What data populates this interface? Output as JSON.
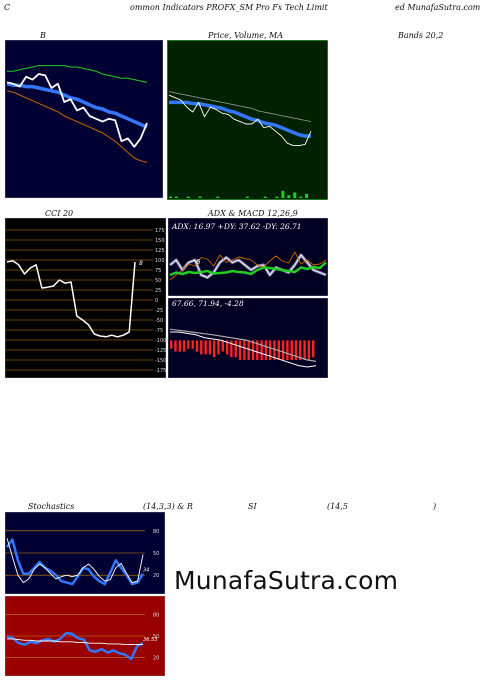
{
  "header": {
    "left": "C",
    "center": "ommon  Indicators PROFX_SM Pro  Fx Tech Limit",
    "right": "ed MunafaSutra.com"
  },
  "titles": {
    "bands_b": "B",
    "price_ma": "Price,  Volume,  MA",
    "bands": "Bands 20,2",
    "cci": "CCI 20",
    "adx_macd": "ADX   & MACD 12,26,9",
    "stoch_a": "Stochastics",
    "stoch_b": "(14,3,3) & R",
    "stoch_c": "SI",
    "stoch_d": "(14,5",
    "stoch_e": ")"
  },
  "adx_text": "ADX: 16.97  +DY: 37.62  -DY: 26.71",
  "macd_text": "67.66,   71.94,   -4.28",
  "watermark": "MunafaSutra.com",
  "colors": {
    "bollinger_bg": "#000033",
    "price_bg": "#002200",
    "cci_bg": "#000000",
    "adx_bg": "#000022",
    "stoch_bg": "#000033",
    "rsi_bg": "#990000",
    "panel_border": "#33cc33",
    "grid": "#cc8800",
    "white": "#ffffff",
    "blue": "#3377ff",
    "green": "#22cc22",
    "orange": "#cc6600",
    "red": "#ff2222"
  },
  "chart_data": [
    {
      "type": "line",
      "panel": "bollinger",
      "ylim": [
        0,
        100
      ],
      "series": [
        {
          "values": [
            74,
            73,
            71,
            78,
            76,
            80,
            79,
            70,
            73,
            60,
            62,
            54,
            56,
            50,
            48,
            46,
            48,
            47,
            32,
            34,
            28,
            34,
            45
          ]
        },
        {
          "values": [
            73,
            72,
            72,
            71,
            71,
            70,
            69,
            68,
            67,
            65,
            63,
            62,
            60,
            58,
            56,
            55,
            53,
            52,
            50,
            48,
            46,
            44,
            42
          ]
        },
        {
          "values": [
            82,
            82,
            83,
            84,
            85,
            86,
            86,
            86,
            86,
            86,
            85,
            85,
            84,
            83,
            82,
            80,
            79,
            78,
            77,
            77,
            76,
            75,
            74
          ]
        },
        {
          "values": [
            68,
            67,
            65,
            63,
            61,
            59,
            57,
            55,
            53,
            50,
            48,
            46,
            44,
            42,
            40,
            38,
            35,
            32,
            28,
            24,
            20,
            18,
            17
          ]
        }
      ]
    },
    {
      "type": "line",
      "panel": "price",
      "ylim": [
        0,
        100
      ],
      "series": [
        {
          "values": [
            64,
            62,
            60,
            54,
            50,
            58,
            46,
            54,
            52,
            49,
            48,
            44,
            42,
            40,
            40,
            44,
            37,
            38,
            34,
            30,
            24,
            22,
            22,
            23,
            34
          ]
        },
        {
          "values": [
            58,
            58,
            58,
            58,
            57,
            57,
            56,
            55,
            54,
            53,
            51,
            50,
            48,
            46,
            44,
            43,
            41,
            40,
            39,
            37,
            35,
            33,
            31,
            30,
            30
          ]
        },
        {
          "values": [
            67,
            66,
            65,
            64,
            63,
            62,
            61,
            60,
            59,
            58,
            57,
            56,
            55,
            54,
            53,
            51,
            50,
            49,
            48,
            47,
            46,
            45,
            44,
            43,
            42
          ]
        }
      ],
      "volume": [
        1,
        1,
        0,
        1,
        0,
        1,
        0,
        0,
        1,
        0,
        0,
        0,
        0,
        1,
        0,
        0,
        1,
        0,
        1,
        5,
        2,
        4,
        1,
        3,
        0
      ]
    },
    {
      "type": "line",
      "panel": "cci",
      "ylim": [
        -175,
        175
      ],
      "yticks": [
        175,
        150,
        125,
        100,
        75,
        50,
        25,
        0,
        -25,
        -50,
        -75,
        -100,
        -125,
        -150,
        -175
      ],
      "ytick_labels": [
        "175",
        "150",
        "125",
        "100",
        "75",
        "50",
        "25",
        "0",
        "-25",
        "-50",
        "-75",
        "-100",
        "-125",
        "-150",
        "-175"
      ],
      "series": [
        {
          "values": [
            95,
            98,
            88,
            65,
            80,
            88,
            30,
            32,
            35,
            50,
            42,
            45,
            -40,
            -50,
            -62,
            -85,
            -90,
            -92,
            -88,
            -92,
            -88,
            -80,
            95
          ]
        }
      ],
      "end_label": "8"
    },
    {
      "type": "line",
      "panel": "adx",
      "ylim": [
        0,
        100
      ],
      "series": [
        {
          "values": [
            30,
            35,
            32,
            36,
            34,
            36,
            38,
            33,
            34,
            35,
            38,
            36,
            35,
            32,
            40,
            45,
            44,
            42,
            40,
            38,
            36,
            45,
            42,
            46,
            44,
            55
          ]
        },
        {
          "values": [
            20,
            30,
            40,
            52,
            48,
            65,
            62,
            48,
            70,
            55,
            60,
            66,
            63,
            60,
            50,
            46,
            58,
            68,
            58,
            54,
            76,
            52,
            60,
            50,
            52,
            60
          ]
        },
        {
          "values": [
            50,
            60,
            40,
            55,
            60,
            30,
            25,
            35,
            55,
            65,
            55,
            60,
            50,
            40,
            48,
            50,
            30,
            45,
            40,
            35,
            50,
            70,
            55,
            40,
            35,
            30
          ]
        }
      ],
      "label": "6"
    },
    {
      "type": "bar",
      "panel": "macd",
      "ylim": [
        -12,
        8
      ],
      "histogram": [
        -3,
        -4,
        -4,
        -4,
        -3,
        -3,
        -4,
        -5,
        -5,
        -5,
        -6,
        -5,
        -4,
        -5,
        -6,
        -6,
        -7,
        -7,
        -7,
        -7,
        -7,
        -7,
        -7,
        -7,
        -7,
        -7,
        -7,
        -7,
        -7,
        -7,
        -7,
        -7,
        -7,
        -6
      ],
      "series": [
        {
          "values": [
            3,
            3,
            2.5,
            2,
            1,
            0.5,
            0,
            -1,
            -2,
            -3,
            -4,
            -5,
            -6,
            -7,
            -8,
            -9,
            -9.5,
            -9
          ]
        },
        {
          "values": [
            4,
            3.6,
            3.2,
            2.8,
            2.4,
            2,
            1.5,
            1,
            0.5,
            0,
            -1,
            -2,
            -3,
            -4,
            -5,
            -6,
            -7,
            -7.5
          ]
        }
      ]
    },
    {
      "type": "line",
      "panel": "stochastics",
      "ylim": [
        0,
        100
      ],
      "yticks": [
        80,
        50,
        20
      ],
      "ytick_labels": [
        "80",
        "50",
        "20"
      ],
      "series": [
        {
          "values": [
            58,
            68,
            40,
            22,
            22,
            30,
            38,
            30,
            26,
            20,
            12,
            10,
            8,
            18,
            30,
            28,
            18,
            12,
            8,
            24,
            40,
            30,
            20,
            8,
            10,
            22
          ]
        },
        {
          "values": [
            70,
            45,
            20,
            10,
            15,
            28,
            35,
            30,
            22,
            15,
            18,
            20,
            18,
            20,
            30,
            35,
            28,
            18,
            12,
            14,
            30,
            36,
            22,
            10,
            12,
            48
          ]
        }
      ],
      "end_label": "34"
    },
    {
      "type": "line",
      "panel": "rsi",
      "ylim": [
        0,
        100
      ],
      "yticks": [
        80,
        50,
        20
      ],
      "ytick_labels": [
        "80",
        "50",
        "20"
      ],
      "series": [
        {
          "values": [
            49,
            47,
            40,
            38,
            42,
            40,
            44,
            46,
            42,
            46,
            54,
            53,
            47,
            45,
            30,
            28,
            32,
            27,
            30,
            26,
            24,
            18,
            36,
            40
          ]
        },
        {
          "values": [
            46,
            46,
            45,
            44,
            44,
            43,
            43,
            43,
            43,
            42,
            42,
            42,
            41,
            41,
            40,
            40,
            40,
            39,
            39,
            39,
            38,
            38,
            38,
            38
          ]
        }
      ],
      "end_label": "36.53"
    }
  ]
}
